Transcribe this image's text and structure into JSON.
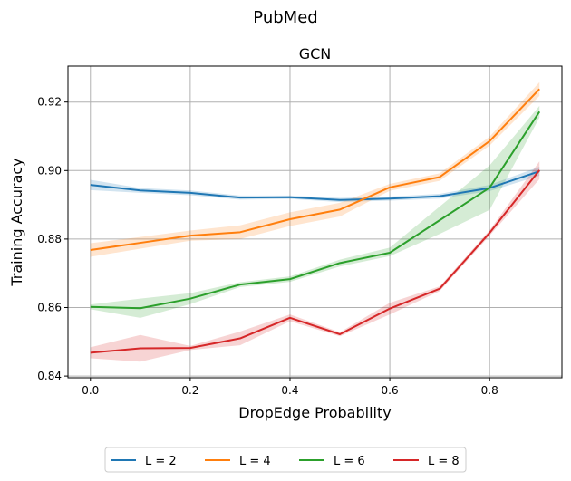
{
  "chart_data": {
    "type": "line",
    "suptitle": "PubMed",
    "title": "GCN",
    "xlabel": "DropEdge Probability",
    "ylabel": "Training Accuracy",
    "xlim": [
      -0.045,
      0.945
    ],
    "ylim": [
      0.8395,
      0.9305
    ],
    "xticks": [
      0.0,
      0.2,
      0.4,
      0.6,
      0.8
    ],
    "xtick_labels": [
      "0.0",
      "0.2",
      "0.4",
      "0.6",
      "0.8"
    ],
    "yticks": [
      0.84,
      0.86,
      0.88,
      0.9,
      0.92
    ],
    "ytick_labels": [
      "0.84",
      "0.86",
      "0.88",
      "0.90",
      "0.92"
    ],
    "grid": true,
    "legend_position": "bottom-center",
    "x": [
      0.0,
      0.1,
      0.2,
      0.3,
      0.4,
      0.5,
      0.6,
      0.7,
      0.8,
      0.9
    ],
    "series": [
      {
        "name": "L = 2",
        "color": "#1f77b4",
        "values": [
          0.8958,
          0.8942,
          0.8935,
          0.8921,
          0.8922,
          0.8914,
          0.8918,
          0.8925,
          0.8949,
          0.8998
        ],
        "lower": [
          0.8943,
          0.8935,
          0.8928,
          0.8915,
          0.8917,
          0.8908,
          0.8912,
          0.8918,
          0.894,
          0.8985
        ],
        "upper": [
          0.8973,
          0.8949,
          0.8942,
          0.8927,
          0.8927,
          0.892,
          0.8924,
          0.8932,
          0.8958,
          0.9011
        ]
      },
      {
        "name": "L = 4",
        "color": "#ff7f0e",
        "values": [
          0.8768,
          0.8789,
          0.881,
          0.882,
          0.8858,
          0.8886,
          0.8951,
          0.8981,
          0.9086,
          0.9238
        ],
        "lower": [
          0.8748,
          0.8772,
          0.8795,
          0.88,
          0.8838,
          0.8866,
          0.8941,
          0.897,
          0.9073,
          0.9218
        ],
        "upper": [
          0.8788,
          0.8806,
          0.8825,
          0.884,
          0.8878,
          0.8906,
          0.8961,
          0.8992,
          0.9099,
          0.9258
        ]
      },
      {
        "name": "L = 6",
        "color": "#2ca02c",
        "values": [
          0.8602,
          0.8598,
          0.8626,
          0.8667,
          0.8683,
          0.873,
          0.876,
          0.8855,
          0.895,
          0.9172
        ],
        "lower": [
          0.8595,
          0.857,
          0.861,
          0.866,
          0.8675,
          0.872,
          0.875,
          0.8815,
          0.8885,
          0.9155
        ],
        "upper": [
          0.8609,
          0.8626,
          0.8642,
          0.8674,
          0.8691,
          0.874,
          0.8775,
          0.8895,
          0.9015,
          0.9189
        ]
      },
      {
        "name": "L = 8",
        "color": "#d62728",
        "values": [
          0.8468,
          0.8481,
          0.8482,
          0.851,
          0.857,
          0.8522,
          0.8597,
          0.8655,
          0.8818,
          0.9001
        ],
        "lower": [
          0.8452,
          0.8442,
          0.8476,
          0.849,
          0.856,
          0.8516,
          0.858,
          0.8648,
          0.881,
          0.8975
        ],
        "upper": [
          0.8484,
          0.852,
          0.8488,
          0.853,
          0.858,
          0.8528,
          0.8614,
          0.8662,
          0.8826,
          0.9027
        ]
      }
    ]
  }
}
